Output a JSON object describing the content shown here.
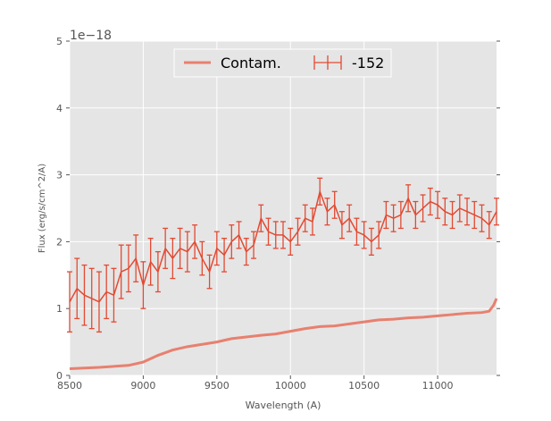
{
  "chart_data": {
    "type": "line",
    "xlabel": "Wavelength (A)",
    "ylabel": "Flux (erg/s/cm^2/A)",
    "offset_label": "1e−18",
    "xlim": [
      8500,
      11400
    ],
    "ylim": [
      0,
      5
    ],
    "xticks": [
      8500,
      9000,
      9500,
      10000,
      10500,
      11000
    ],
    "yticks": [
      0,
      1,
      2,
      3,
      4,
      5
    ],
    "grid": true,
    "legend": {
      "placement": "top-center",
      "entries": [
        "Contam.",
        "-152"
      ]
    },
    "colors": {
      "contam": "#e8806f",
      "data": "#e24a33",
      "bg": "#e5e5e5"
    },
    "series": [
      {
        "name": "Contam.",
        "type": "line",
        "x": [
          8500,
          8700,
          8900,
          9000,
          9100,
          9200,
          9300,
          9500,
          9600,
          9800,
          9900,
          10000,
          10100,
          10200,
          10300,
          10400,
          10500,
          10600,
          10700,
          10800,
          10900,
          11000,
          11100,
          11200,
          11300,
          11350,
          11380,
          11400
        ],
        "y": [
          0.1,
          0.12,
          0.15,
          0.2,
          0.3,
          0.38,
          0.43,
          0.5,
          0.55,
          0.6,
          0.62,
          0.66,
          0.7,
          0.73,
          0.74,
          0.77,
          0.8,
          0.83,
          0.84,
          0.86,
          0.87,
          0.89,
          0.91,
          0.93,
          0.94,
          0.96,
          1.05,
          1.15
        ]
      },
      {
        "name": "-152",
        "type": "errorbar",
        "x": [
          8500,
          8550,
          8600,
          8650,
          8700,
          8750,
          8800,
          8850,
          8900,
          8950,
          9000,
          9050,
          9100,
          9150,
          9200,
          9250,
          9300,
          9350,
          9400,
          9450,
          9500,
          9550,
          9600,
          9650,
          9700,
          9750,
          9800,
          9850,
          9900,
          9950,
          10000,
          10050,
          10100,
          10150,
          10200,
          10250,
          10300,
          10350,
          10400,
          10450,
          10500,
          10550,
          10600,
          10650,
          10700,
          10750,
          10800,
          10850,
          10900,
          10950,
          11000,
          11050,
          11100,
          11150,
          11200,
          11250,
          11300,
          11350,
          11400
        ],
        "y": [
          1.1,
          1.3,
          1.2,
          1.15,
          1.1,
          1.25,
          1.2,
          1.55,
          1.6,
          1.75,
          1.35,
          1.7,
          1.55,
          1.9,
          1.75,
          1.9,
          1.85,
          2.0,
          1.75,
          1.55,
          1.9,
          1.8,
          2.0,
          2.1,
          1.85,
          1.95,
          2.35,
          2.15,
          2.1,
          2.1,
          2.0,
          2.15,
          2.35,
          2.3,
          2.75,
          2.45,
          2.55,
          2.25,
          2.35,
          2.15,
          2.1,
          2.0,
          2.1,
          2.4,
          2.35,
          2.4,
          2.65,
          2.4,
          2.5,
          2.6,
          2.55,
          2.45,
          2.4,
          2.5,
          2.45,
          2.4,
          2.35,
          2.25,
          2.45
        ],
        "yerr": [
          0.45,
          0.45,
          0.45,
          0.45,
          0.45,
          0.4,
          0.4,
          0.4,
          0.35,
          0.35,
          0.35,
          0.35,
          0.3,
          0.3,
          0.3,
          0.3,
          0.3,
          0.25,
          0.25,
          0.25,
          0.25,
          0.25,
          0.25,
          0.2,
          0.2,
          0.2,
          0.2,
          0.2,
          0.2,
          0.2,
          0.2,
          0.2,
          0.2,
          0.2,
          0.2,
          0.2,
          0.2,
          0.2,
          0.2,
          0.2,
          0.2,
          0.2,
          0.2,
          0.2,
          0.2,
          0.2,
          0.2,
          0.2,
          0.2,
          0.2,
          0.2,
          0.2,
          0.2,
          0.2,
          0.2,
          0.2,
          0.2,
          0.2,
          0.2
        ]
      }
    ]
  }
}
